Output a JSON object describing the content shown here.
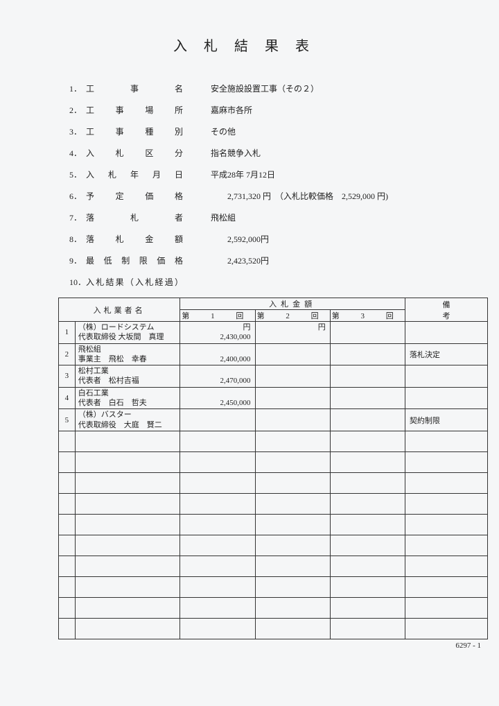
{
  "title": "入札結果表",
  "info": [
    {
      "num": "1．",
      "label": "工　事　名",
      "value": "安全施設設置工事（その２）"
    },
    {
      "num": "2．",
      "label": "工　事　場　所",
      "value": "嘉麻市各所"
    },
    {
      "num": "3．",
      "label": "工　事　種　別",
      "value": "その他"
    },
    {
      "num": "4．",
      "label": "入　札　区　分",
      "value": "指名競争入札"
    },
    {
      "num": "5．",
      "label": "入 札 年 月 日",
      "value": "平成28年 7月12日"
    },
    {
      "num": "6．",
      "label": "予　定　価　格",
      "value": "        2,731,320 円  （入札比較価格    2,529,000 円)"
    },
    {
      "num": "7．",
      "label": "落　札　者",
      "value": "飛松組"
    },
    {
      "num": "8．",
      "label": "落　札　金　額",
      "value": "        2,592,000円"
    },
    {
      "num": "9．",
      "label": "最 低 制 限 価 格",
      "value": "        2,423,520円"
    },
    {
      "num": "10．",
      "label": "入札結果（入札経過）",
      "value": ""
    }
  ],
  "table": {
    "headers": {
      "name": "入札業者名",
      "amount": "入札金額",
      "note": "備考",
      "round1": "第  1   回",
      "round2": "第   2   回",
      "round3": "第   3   回"
    },
    "rows": [
      {
        "num": "1",
        "name": "（株）ロードシステム\n代表取締役 大坂間　真理",
        "bid1": "円\n2,430,000",
        "bid2": "円",
        "bid3": "",
        "note": ""
      },
      {
        "num": "2",
        "name": "飛松組\n事業主　飛松　幸春",
        "bid1": "\n2,400,000",
        "bid2": "",
        "bid3": "",
        "note": "落札決定"
      },
      {
        "num": "3",
        "name": "松村工業\n代表者　松村吉福",
        "bid1": "\n2,470,000",
        "bid2": "",
        "bid3": "",
        "note": ""
      },
      {
        "num": "4",
        "name": "白石工業\n代表者　白石　哲夫",
        "bid1": "\n2,450,000",
        "bid2": "",
        "bid3": "",
        "note": ""
      },
      {
        "num": "5",
        "name": "（株）バスター\n代表取締役　大庭　賢二",
        "bid1": "",
        "bid2": "",
        "bid3": "",
        "note": "契約制限"
      }
    ],
    "empty_rows": 10
  },
  "footer_id": "6297 - 1"
}
